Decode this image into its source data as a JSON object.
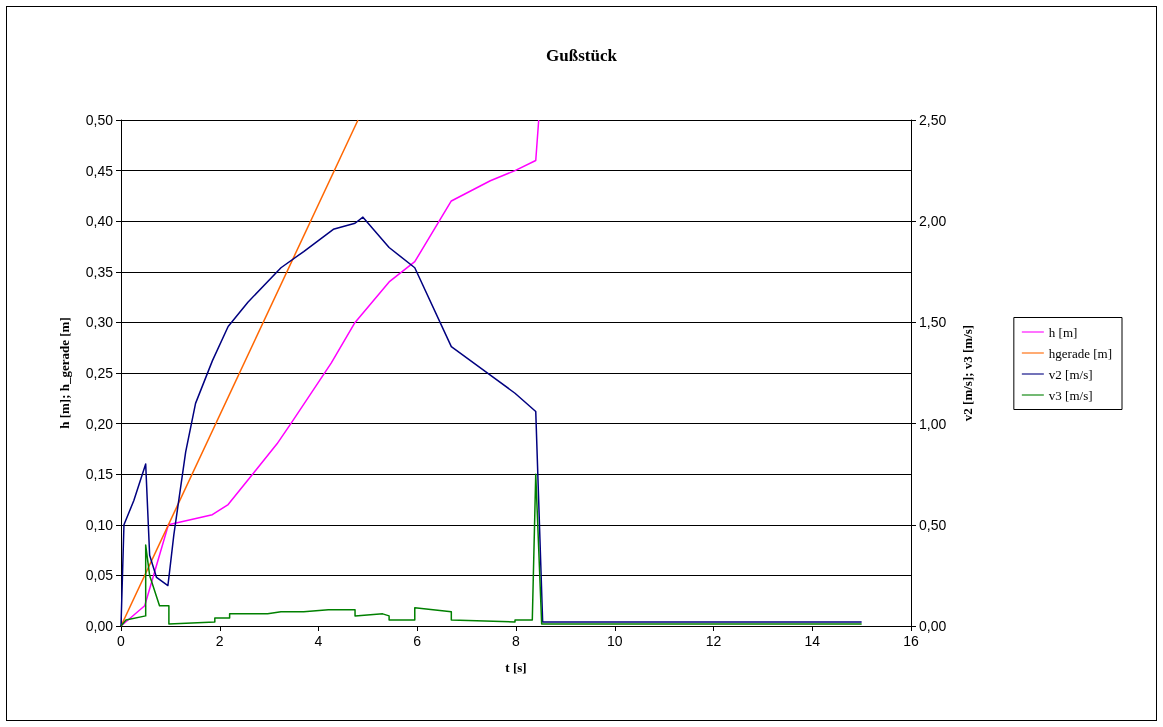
{
  "chart_data": {
    "type": "line",
    "title": "Gußstück",
    "xlabel": "t [s]",
    "ylabel": "h [m]; h_gerade [m]",
    "y2label": "v2 [m/s]; v3 [m/s]",
    "xlim": [
      0,
      16
    ],
    "xticks": [
      0,
      2,
      4,
      6,
      8,
      10,
      12,
      14,
      16
    ],
    "ylim": [
      0,
      0.5
    ],
    "yticks": [
      {
        "value": 0,
        "label": "0,00"
      },
      {
        "value": 0.05,
        "label": "0,05"
      },
      {
        "value": 0.1,
        "label": "0,10"
      },
      {
        "value": 0.15,
        "label": "0,15"
      },
      {
        "value": 0.2,
        "label": "0,20"
      },
      {
        "value": 0.25,
        "label": "0,25"
      },
      {
        "value": 0.3,
        "label": "0,30"
      },
      {
        "value": 0.35,
        "label": "0,35"
      },
      {
        "value": 0.4,
        "label": "0,40"
      },
      {
        "value": 0.45,
        "label": "0,45"
      },
      {
        "value": 0.5,
        "label": "0,50"
      }
    ],
    "y2lim": [
      0,
      2.5
    ],
    "y2ticks": [
      {
        "value": 0,
        "label": "0,00"
      },
      {
        "value": 0.5,
        "label": "0,50"
      },
      {
        "value": 1,
        "label": "1,00"
      },
      {
        "value": 1.5,
        "label": "1,50"
      },
      {
        "value": 2,
        "label": "2,00"
      },
      {
        "value": 2.5,
        "label": "2,50"
      }
    ],
    "grid": "y",
    "legend": "right",
    "marker": "none",
    "line_style": "solid",
    "series": [
      {
        "name": "h [m]",
        "color": "#ff00ff",
        "x": [
          0,
          0.48,
          0.96,
          1.85,
          2.17,
          3.16,
          3.44,
          4.26,
          4.74,
          5.43,
          5.95,
          6.69,
          7.48,
          7.98,
          8.4,
          8.46
        ],
        "values": [
          0,
          0.02,
          0.1,
          0.11,
          0.12,
          0.18,
          0.2,
          0.26,
          0.3,
          0.34,
          0.36,
          0.42,
          0.44,
          0.45,
          0.46,
          0.5
        ]
      },
      {
        "name": "hgerade [m]",
        "color": "#ff6600",
        "x": [
          0,
          4.8
        ],
        "values": [
          0,
          0.5
        ]
      },
      {
        "name": "v2 [m/s]",
        "color": "#000080",
        "axis": "y2",
        "x": [
          0,
          0.06,
          0.26,
          0.5,
          0.58,
          0.72,
          0.95,
          0.97,
          1.07,
          1.31,
          1.51,
          1.85,
          2.17,
          2.57,
          3.24,
          3.7,
          4.3,
          4.74,
          4.9,
          5.43,
          5.95,
          6.69,
          7.48,
          7.98,
          8.4,
          8.54,
          15
        ],
        "values": [
          0,
          0.5,
          0.62,
          0.8,
          0.35,
          0.24,
          0.2,
          0.24,
          0.45,
          0.86,
          1.1,
          1.31,
          1.48,
          1.6,
          1.77,
          1.85,
          1.96,
          1.99,
          2.02,
          1.87,
          1.77,
          1.38,
          1.24,
          1.15,
          1.06,
          0.02,
          0.02
        ]
      },
      {
        "name": "v3 [m/s]",
        "color": "#008000",
        "axis": "y2",
        "x": [
          0,
          0.1,
          0.5,
          0.5,
          0.58,
          0.78,
          0.97,
          0.97,
          1.9,
          1.9,
          2.2,
          2.2,
          2.5,
          2.97,
          3.24,
          3.7,
          4.2,
          4.74,
          4.74,
          5.3,
          5.43,
          5.43,
          5.95,
          5.95,
          6.69,
          6.69,
          7.98,
          7.98,
          8.33,
          8.4,
          8.52,
          15
        ],
        "values": [
          0,
          0.03,
          0.05,
          0.4,
          0.25,
          0.1,
          0.1,
          0.01,
          0.02,
          0.04,
          0.04,
          0.06,
          0.06,
          0.06,
          0.07,
          0.07,
          0.08,
          0.08,
          0.05,
          0.06,
          0.05,
          0.03,
          0.03,
          0.09,
          0.07,
          0.03,
          0.02,
          0.03,
          0.03,
          0.75,
          0.01,
          0.01
        ]
      }
    ]
  }
}
